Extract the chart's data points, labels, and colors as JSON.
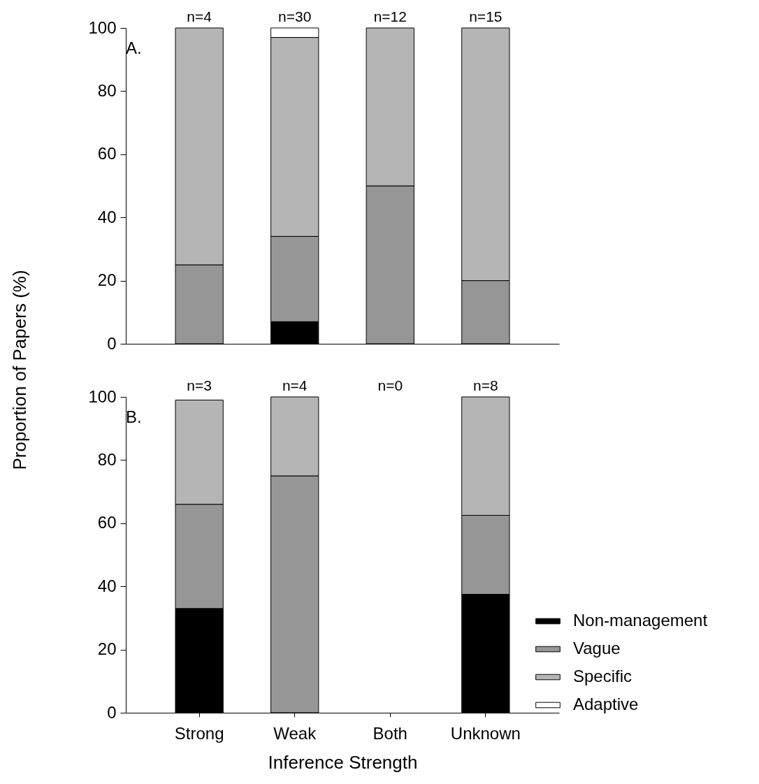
{
  "chart_data": [
    {
      "type": "bar",
      "stacked": true,
      "categories": [
        "Strong",
        "Weak",
        "Both",
        "Unknown"
      ],
      "series": [
        {
          "color": "#000000",
          "values": [
            null,
            7,
            null,
            null
          ]
        },
        {
          "color": "#969696",
          "values": [
            25,
            27,
            50,
            20
          ]
        },
        {
          "color": "#b5b5b5",
          "values": [
            75,
            63,
            50,
            80
          ]
        },
        {
          "color": "#ffffff",
          "values": [
            null,
            3,
            null,
            null
          ]
        }
      ],
      "ylim": [
        0,
        100
      ],
      "yticks": [
        0,
        20,
        40,
        60,
        80,
        100
      ],
      "tick_labels": "y",
      "annotations": [
        "A.",
        {
          "text": "n=4",
          "x": "Strong",
          "y": 100
        },
        {
          "text": "n=30",
          "x": "Weak",
          "y": 100
        },
        {
          "text": "n=12",
          "x": "Both",
          "y": 100
        },
        {
          "text": "n=15",
          "x": "Unknown",
          "y": 100
        }
      ]
    },
    {
      "type": "bar",
      "stacked": true,
      "categories": [
        "Strong",
        "Weak",
        "Both",
        "Unknown"
      ],
      "series": [
        {
          "name": "Non-management",
          "color": "#000000",
          "values": [
            33,
            null,
            null,
            37.5
          ]
        },
        {
          "name": "Vague",
          "color": "#969696",
          "values": [
            33,
            75,
            null,
            25
          ]
        },
        {
          "name": "Specific",
          "color": "#b5b5b5",
          "values": [
            33,
            25,
            null,
            37.5
          ]
        },
        {
          "name": "Adaptive",
          "color": "#ffffff",
          "values": [
            null,
            null,
            null,
            null
          ]
        }
      ],
      "ylim": [
        0,
        100
      ],
      "yticks": [
        0,
        20,
        40,
        60,
        80,
        100
      ],
      "xlabel": "Inference Strength",
      "ylabel": "Proportion of Papers (%)",
      "legend": "bottom right",
      "annotations": [
        "B.",
        {
          "text": "n=3",
          "x": "Strong",
          "y": 100
        },
        {
          "text": "n=4",
          "x": "Weak",
          "y": 100
        },
        "n=0",
        {
          "text": "n=8",
          "x": "Unknown",
          "y": 100
        }
      ]
    }
  ]
}
